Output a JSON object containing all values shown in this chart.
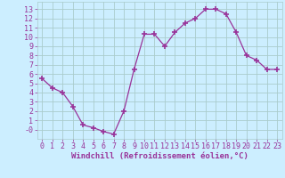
{
  "x": [
    0,
    1,
    2,
    3,
    4,
    5,
    6,
    7,
    8,
    9,
    10,
    11,
    12,
    13,
    14,
    15,
    16,
    17,
    18,
    19,
    20,
    21,
    22,
    23
  ],
  "y": [
    5.5,
    4.5,
    4.0,
    2.5,
    0.5,
    0.2,
    -0.2,
    -0.5,
    2.0,
    6.5,
    10.3,
    10.3,
    9.0,
    10.5,
    11.5,
    12.0,
    13.0,
    13.0,
    12.5,
    10.5,
    8.0,
    7.5,
    6.5,
    6.5
  ],
  "line_color": "#993399",
  "marker": "+",
  "marker_size": 4,
  "marker_lw": 1.2,
  "bg_color": "#cceeff",
  "grid_color": "#aacccc",
  "xlabel": "Windchill (Refroidissement éolien,°C)",
  "xlabel_color": "#993399",
  "xlabel_fontsize": 6.5,
  "tick_color": "#993399",
  "tick_fontsize": 6.0,
  "ylim": [
    -1.0,
    13.8
  ],
  "xlim": [
    -0.5,
    23.5
  ],
  "yticks": [
    0,
    1,
    2,
    3,
    4,
    5,
    6,
    7,
    8,
    9,
    10,
    11,
    12,
    13
  ],
  "ytick_labels": [
    "-0",
    "1",
    "2",
    "3",
    "4",
    "5",
    "6",
    "7",
    "8",
    "9",
    "10",
    "11",
    "12",
    "13"
  ],
  "xticks": [
    0,
    1,
    2,
    3,
    4,
    5,
    6,
    7,
    8,
    9,
    10,
    11,
    12,
    13,
    14,
    15,
    16,
    17,
    18,
    19,
    20,
    21,
    22,
    23
  ]
}
